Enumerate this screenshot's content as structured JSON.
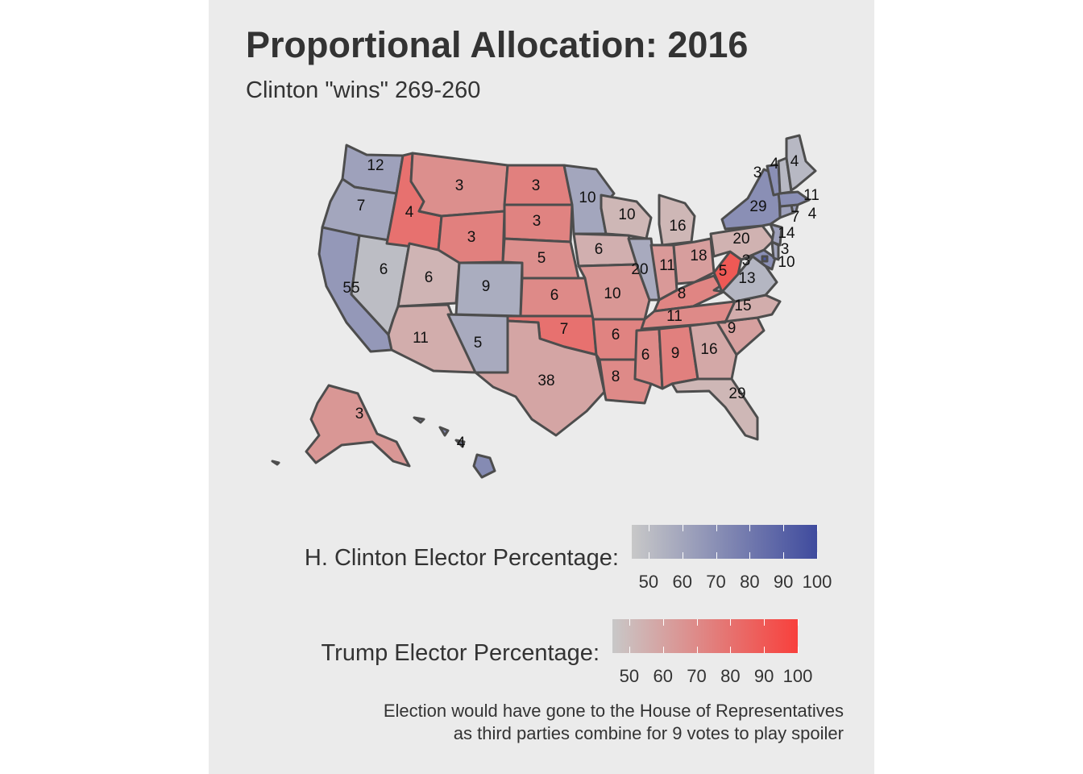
{
  "title": "Proportional Allocation: 2016",
  "subtitle": "Clinton \"wins\" 269-260",
  "colors": {
    "clinton_low": "#c8c8c8",
    "clinton_high": "#3f4b9e",
    "trump_low": "#c8c8c8",
    "trump_high": "#f8403c",
    "panel_bg": "#ebebeb",
    "border": "#4d4d4d"
  },
  "legend_clinton": {
    "title": "H. Clinton Elector Percentage:",
    "ticks": [
      "50",
      "60",
      "70",
      "80",
      "90",
      "100"
    ],
    "range": [
      45,
      100
    ]
  },
  "legend_trump": {
    "title": "Trump Elector Percentage:",
    "ticks": [
      "50",
      "60",
      "70",
      "80",
      "90",
      "100"
    ],
    "range": [
      45,
      100
    ]
  },
  "caption_line1": "Election would have gone to the House of Representatives",
  "caption_line2": "as third parties combine for 9 votes to play spoiler",
  "states": [
    {
      "abbr": "WA",
      "ev": "12",
      "winner": "clinton",
      "pct": 62
    },
    {
      "abbr": "OR",
      "ev": "7",
      "winner": "clinton",
      "pct": 60
    },
    {
      "abbr": "CA",
      "ev": "55",
      "winner": "clinton",
      "pct": 66
    },
    {
      "abbr": "NV",
      "ev": "6",
      "winner": "clinton",
      "pct": 50
    },
    {
      "abbr": "ID",
      "ev": "4",
      "winner": "trump",
      "pct": 80
    },
    {
      "abbr": "MT",
      "ev": "3",
      "winner": "trump",
      "pct": 68
    },
    {
      "abbr": "WY",
      "ev": "3",
      "winner": "trump",
      "pct": 74
    },
    {
      "abbr": "UT",
      "ev": "6",
      "winner": "trump",
      "pct": 53
    },
    {
      "abbr": "AZ",
      "ev": "11",
      "winner": "trump",
      "pct": 56
    },
    {
      "abbr": "CO",
      "ev": "9",
      "winner": "clinton",
      "pct": 57
    },
    {
      "abbr": "NM",
      "ev": "5",
      "winner": "clinton",
      "pct": 58
    },
    {
      "abbr": "ND",
      "ev": "3",
      "winner": "trump",
      "pct": 74
    },
    {
      "abbr": "SD",
      "ev": "3",
      "winner": "trump",
      "pct": 73
    },
    {
      "abbr": "NE",
      "ev": "5",
      "winner": "trump",
      "pct": 68
    },
    {
      "abbr": "KS",
      "ev": "6",
      "winner": "trump",
      "pct": 70
    },
    {
      "abbr": "OK",
      "ev": "7",
      "winner": "trump",
      "pct": 80
    },
    {
      "abbr": "TX",
      "ev": "38",
      "winner": "trump",
      "pct": 59
    },
    {
      "abbr": "MN",
      "ev": "10",
      "winner": "clinton",
      "pct": 60
    },
    {
      "abbr": "IA",
      "ev": "6",
      "winner": "trump",
      "pct": 55
    },
    {
      "abbr": "MO",
      "ev": "10",
      "winner": "trump",
      "pct": 65
    },
    {
      "abbr": "AR",
      "ev": "6",
      "winner": "trump",
      "pct": 73
    },
    {
      "abbr": "LA",
      "ev": "8",
      "winner": "trump",
      "pct": 70
    },
    {
      "abbr": "WI",
      "ev": "10",
      "winner": "trump",
      "pct": 52
    },
    {
      "abbr": "IL",
      "ev": "20",
      "winner": "clinton",
      "pct": 58
    },
    {
      "abbr": "MI",
      "ev": "16",
      "winner": "trump",
      "pct": 52
    },
    {
      "abbr": "IN",
      "ev": "11",
      "winner": "trump",
      "pct": 64
    },
    {
      "abbr": "KY",
      "ev": "8",
      "winner": "trump",
      "pct": 72
    },
    {
      "abbr": "TN",
      "ev": "11",
      "winner": "trump",
      "pct": 70
    },
    {
      "abbr": "MS",
      "ev": "6",
      "winner": "trump",
      "pct": 70
    },
    {
      "abbr": "AL",
      "ev": "9",
      "winner": "trump",
      "pct": 74
    },
    {
      "abbr": "OH",
      "ev": "18",
      "winner": "trump",
      "pct": 62
    },
    {
      "abbr": "WV",
      "ev": "5",
      "winner": "trump",
      "pct": 90
    },
    {
      "abbr": "VA",
      "ev": "13",
      "winner": "clinton",
      "pct": 53
    },
    {
      "abbr": "NC",
      "ev": "15",
      "winner": "trump",
      "pct": 56
    },
    {
      "abbr": "SC",
      "ev": "9",
      "winner": "trump",
      "pct": 61
    },
    {
      "abbr": "GA",
      "ev": "16",
      "winner": "trump",
      "pct": 58
    },
    {
      "abbr": "FL",
      "ev": "29",
      "winner": "trump",
      "pct": 52
    },
    {
      "abbr": "PA",
      "ev": "20",
      "winner": "trump",
      "pct": 54
    },
    {
      "abbr": "NY",
      "ev": "29",
      "winner": "clinton",
      "pct": 70
    },
    {
      "abbr": "ME",
      "ev": "4",
      "winner": "clinton",
      "pct": 52
    },
    {
      "abbr": "NH",
      "ev": "4",
      "winner": "clinton",
      "pct": 52
    },
    {
      "abbr": "VT",
      "ev": "3",
      "winner": "clinton",
      "pct": 70
    },
    {
      "abbr": "MA",
      "ev": "11",
      "winner": "clinton",
      "pct": 70
    },
    {
      "abbr": "RI",
      "ev": "4",
      "winner": "clinton",
      "pct": 64
    },
    {
      "abbr": "CT",
      "ev": "7",
      "winner": "clinton",
      "pct": 62
    },
    {
      "abbr": "NJ",
      "ev": "14",
      "winner": "clinton",
      "pct": 62
    },
    {
      "abbr": "DE",
      "ev": "3",
      "winner": "clinton",
      "pct": 60
    },
    {
      "abbr": "MD",
      "ev": "10",
      "winner": "clinton",
      "pct": 70
    },
    {
      "abbr": "DC",
      "ev": "3",
      "winner": "clinton",
      "pct": 95
    },
    {
      "abbr": "AK",
      "ev": "3",
      "winner": "trump",
      "pct": 65
    },
    {
      "abbr": "HI",
      "ev": "4",
      "winner": "clinton",
      "pct": 72
    }
  ]
}
